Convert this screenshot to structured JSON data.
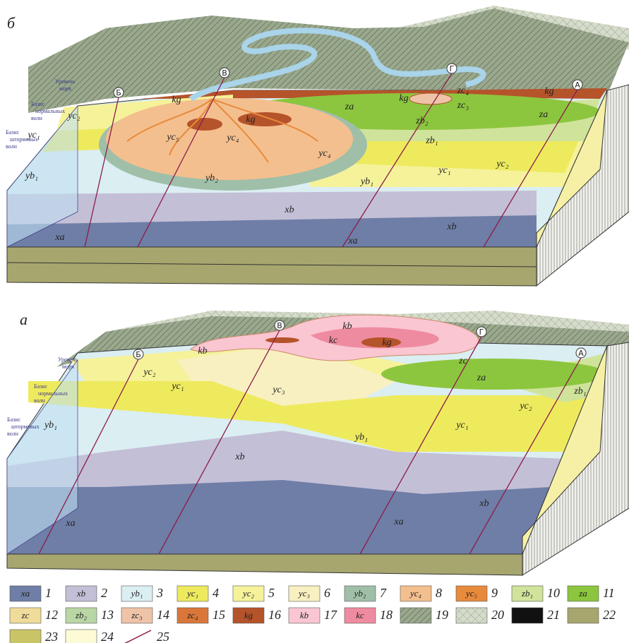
{
  "panels": [
    {
      "letter": "б",
      "sidebar": [
        [
          "Уровень",
          "моря"
        ],
        [
          "Базис",
          "нормальных",
          "волн"
        ],
        [
          "Базис",
          "штормовых",
          "волн"
        ]
      ],
      "sections": [
        "Б",
        "В",
        "Г",
        "А"
      ],
      "units": [
        "yc₂",
        "yc₁",
        "yb₁",
        "kg",
        "yc₅",
        "kg",
        "yc₄",
        "yc₄",
        "yb₂",
        "yb₁",
        "xb",
        "xa",
        "xa",
        "xb",
        "za",
        "za",
        "kg",
        "zc₄",
        "zc₃",
        "zb₂",
        "zb₁",
        "yc₁",
        "yc₂",
        "kg"
      ]
    },
    {
      "letter": "а",
      "sidebar": [
        [
          "Уровень",
          "моря"
        ],
        [
          "Базис",
          "нормальных",
          "волн"
        ],
        [
          "Базис",
          "штормовых",
          "волн"
        ]
      ],
      "sections": [
        "Б",
        "В",
        "Г",
        "А"
      ],
      "units": [
        "kb",
        "kb",
        "kc",
        "kg",
        "zc",
        "za",
        "zb₁",
        "yc₂",
        "yc₁",
        "yc₃",
        "yb₁",
        "yc₂",
        "yc₁",
        "yb₁",
        "xb",
        "xb",
        "xa",
        "xa"
      ]
    }
  ],
  "legend": {
    "items": [
      {
        "code": "xa",
        "number": 1
      },
      {
        "code": "xb",
        "number": 2
      },
      {
        "code": "yb₁",
        "number": 3
      },
      {
        "code": "yc₁",
        "number": 4
      },
      {
        "code": "yc₂",
        "number": 5
      },
      {
        "code": "yc₃",
        "number": 6
      },
      {
        "code": "yb₂",
        "number": 7
      },
      {
        "code": "yc₄",
        "number": 8
      },
      {
        "code": "yc₅",
        "number": 9
      },
      {
        "code": "zb₁",
        "number": 10
      },
      {
        "code": "za",
        "number": 11
      },
      {
        "code": "zc",
        "number": 12
      },
      {
        "code": "zb₂",
        "number": 13
      },
      {
        "code": "zc₃",
        "number": 14
      },
      {
        "code": "zc₄",
        "number": 15
      },
      {
        "code": "kg",
        "number": 16
      },
      {
        "code": "kb",
        "number": 17
      },
      {
        "code": "kc",
        "number": 18
      },
      {
        "number": 19
      },
      {
        "number": 20
      },
      {
        "number": 21
      },
      {
        "number": 22
      },
      {
        "number": 23
      },
      {
        "number": 24
      },
      {
        "number": 25
      }
    ]
  }
}
